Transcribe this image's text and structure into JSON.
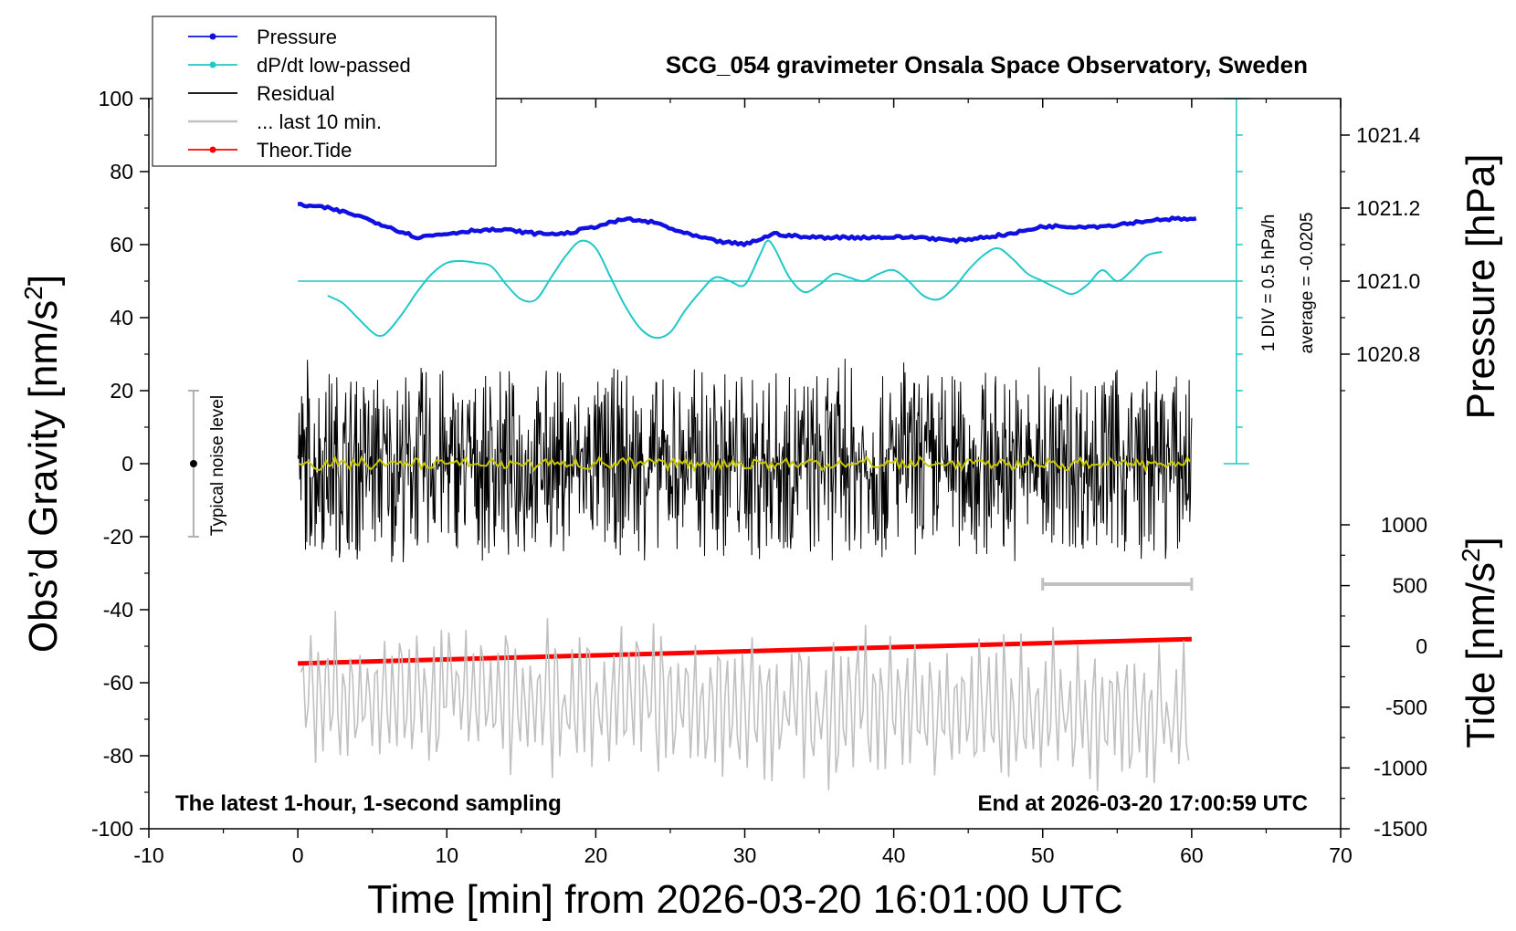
{
  "chart_data": {
    "type": "line",
    "title": "SCG_054 gravimeter Onsala Space Observatory, Sweden",
    "xlabel": "Time [min] from 2026-03-20 16:01:00 UTC",
    "ylabel_left_prefix": "Obs’d Gravity [nm/s",
    "ylabel_left_sup": "2",
    "ylabel_left_suffix": "]",
    "ylabel_right_pressure": "Pressure [hPa]",
    "ylabel_right_tide_prefix": "Tide [nm/s",
    "ylabel_right_tide_sup": "2",
    "ylabel_right_tide_suffix": "]",
    "xlim": [
      -10,
      70
    ],
    "ylim": [
      -100,
      100
    ],
    "pressure_ylim": [
      1020.5,
      1021.5
    ],
    "tide_ylim": [
      -1500,
      1000
    ],
    "x_ticks": [
      "-10",
      "0",
      "10",
      "20",
      "30",
      "40",
      "50",
      "60",
      "70"
    ],
    "y_ticks": [
      "-100",
      "-80",
      "-60",
      "-40",
      "-20",
      "0",
      "20",
      "40",
      "60",
      "80",
      "100"
    ],
    "pressure_ticks": [
      "1020.8",
      "1021.0",
      "1021.2",
      "1021.4"
    ],
    "tide_ticks": [
      "-1500",
      "-1000",
      "-500",
      "0",
      "500",
      "1000"
    ],
    "notes": {
      "left": "The latest 1-hour, 1-second sampling",
      "right": "End at 2026-03-20 17:00:59 UTC",
      "scale_div": "1 DIV = 0.5 hPa/h",
      "scale_avg": "average = -0.0205",
      "noise": "Typical noise level"
    },
    "legend": [
      {
        "label": "Pressure",
        "color": "#1010e0",
        "marker": true
      },
      {
        "label": "dP/dt low-passed",
        "color": "#20c8c8",
        "marker": true
      },
      {
        "label": "Residual",
        "color": "#000000",
        "marker": false
      },
      {
        "label": "... last 10 min.",
        "color": "#c0c0c0",
        "marker": false
      },
      {
        "label": "Theor.Tide",
        "color": "#ff0000",
        "marker": true
      }
    ],
    "series": [
      {
        "name": "Pressure",
        "axis": "pressure",
        "color": "#1010e0",
        "x": [
          0,
          2,
          4,
          6,
          8,
          10,
          12,
          14,
          16,
          18,
          20,
          22,
          24,
          26,
          28,
          30,
          32,
          34,
          36,
          38,
          40,
          42,
          44,
          46,
          48,
          50,
          52,
          54,
          56,
          58,
          60
        ],
        "y": [
          1021.21,
          1021.2,
          1021.18,
          1021.15,
          1021.12,
          1021.13,
          1021.14,
          1021.14,
          1021.13,
          1021.13,
          1021.15,
          1021.17,
          1021.16,
          1021.13,
          1021.11,
          1021.1,
          1021.13,
          1021.12,
          1021.12,
          1021.12,
          1021.12,
          1021.12,
          1021.11,
          1021.12,
          1021.13,
          1021.15,
          1021.15,
          1021.15,
          1021.16,
          1021.17,
          1021.17
        ]
      },
      {
        "name": "dP/dt low-passed",
        "axis": "gravity",
        "color": "#20c8c8",
        "x": [
          2,
          3,
          4,
          5,
          5.5,
          6,
          7,
          8,
          9,
          10,
          11,
          12,
          13,
          14,
          15,
          16,
          17,
          18,
          19,
          20,
          21,
          22,
          23,
          24,
          25,
          26,
          27,
          28,
          29,
          30,
          31,
          31.5,
          32,
          33,
          34,
          35,
          36,
          37,
          38,
          39,
          40,
          41,
          42,
          43,
          44,
          45,
          46,
          47,
          48,
          49,
          50,
          51,
          52,
          53,
          54,
          55,
          56,
          57,
          58
        ],
        "y": [
          46,
          44,
          40,
          36,
          35,
          36,
          41,
          47,
          52,
          55,
          55.5,
          55,
          54,
          49,
          45,
          45,
          51,
          57,
          61,
          59,
          51,
          43,
          37,
          34.5,
          36,
          42,
          47,
          51,
          50,
          49,
          57,
          61,
          59,
          51,
          47,
          49,
          52,
          51,
          50,
          52,
          53,
          50,
          46,
          45,
          48,
          53,
          57,
          59,
          56,
          52,
          50,
          48,
          46.5,
          49,
          53,
          50,
          53,
          57,
          58
        ]
      },
      {
        "name": "Residual",
        "axis": "gravity",
        "color": "#000000",
        "x": [
          0,
          60
        ],
        "y": [
          0,
          0
        ]
      },
      {
        "name": "... last 10 min.",
        "axis": "gravity",
        "color": "#c0c0c0",
        "x": [
          0,
          60
        ],
        "y": [
          -63,
          -69
        ]
      },
      {
        "name": "Theor.Tide",
        "axis": "tide",
        "color": "#ff0000",
        "x": [
          0,
          15,
          30,
          45,
          60
        ],
        "y": [
          -140,
          -90,
          -40,
          10,
          60
        ]
      }
    ],
    "residual_envelope": [
      -32,
      36
    ],
    "dpdt_zero_line_y": 50,
    "noise_bar": [
      -20,
      20
    ],
    "last10_bar_x": [
      50,
      60
    ],
    "last10_bar_y": -33,
    "grid": false
  }
}
